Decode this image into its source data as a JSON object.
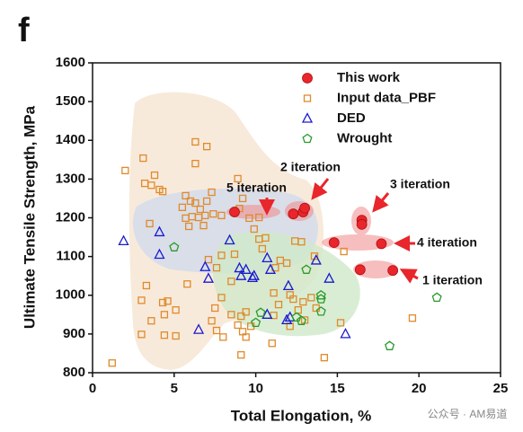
{
  "chart_data": {
    "type": "scatter",
    "title": "f",
    "x_label": "Total Elongation, %",
    "y_label": "Ultimate Tensile Strength, MPa",
    "xlim": [
      0,
      25
    ],
    "xticks": [
      0,
      5,
      10,
      15,
      20,
      25
    ],
    "ylim": [
      800,
      1600
    ],
    "yticks": [
      800,
      900,
      1000,
      1100,
      1200,
      1300,
      1400,
      1500,
      1600
    ],
    "grid": false,
    "legend": "upper right",
    "annotations": [
      "1 iteration",
      "2 iteration",
      "3 iteration",
      "4 iteration",
      "5 iteration"
    ],
    "watermark": "公众号 · AM易道",
    "series": [
      {
        "name": "This work",
        "color": "#e8262b",
        "marker": "circle",
        "x": [
          8.7,
          12.3,
          12.9,
          13.0,
          16.5,
          16.5,
          14.8,
          17.7,
          16.4,
          18.4
        ],
        "values": [
          1215,
          1210,
          1215,
          1225,
          1194,
          1183,
          1136,
          1133,
          1066,
          1064
        ]
      },
      {
        "name": "Input data_PBF",
        "color": "#e08a2a",
        "marker": "square",
        "x": [
          1.2,
          2.0,
          3.1,
          3.2,
          3.6,
          3.8,
          4.1,
          4.3,
          3.5,
          3.3,
          3.0,
          3.0,
          3.6,
          4.3,
          4.6,
          4.4,
          5.1,
          4.4,
          5.1,
          5.8,
          6.3,
          6.3,
          7.0,
          5.7,
          5.5,
          6.0,
          6.3,
          6.6,
          7.0,
          7.3,
          5.7,
          6.1,
          6.5,
          6.9,
          7.4,
          7.9,
          5.9,
          6.8,
          8.9,
          9.2,
          9.0,
          9.6,
          10.2,
          9.9,
          10.2,
          10.4,
          10.6,
          7.1,
          7.9,
          7.6,
          8.5,
          8.7,
          7.9,
          7.5,
          7.3,
          7.6,
          8.0,
          8.5,
          8.9,
          9.1,
          9.2,
          9.4,
          9.4,
          9.7,
          9.1,
          11.1,
          11.4,
          11.1,
          11.0,
          11.2,
          11.5,
          11.9,
          12.1,
          12.3,
          12.9,
          13.4,
          12.6,
          13.0,
          13.7,
          12.1,
          13.6,
          12.8,
          14.2,
          15.4,
          15.2,
          19.6,
          12.4
        ],
        "values": [
          825,
          1322,
          1354,
          1289,
          1284,
          1310,
          1273,
          1268,
          1185,
          1025,
          987,
          899,
          934,
          981,
          985,
          950,
          962,
          897,
          895,
          1029,
          1396,
          1340,
          1384,
          1257,
          1227,
          1243,
          1238,
          1222,
          1243,
          1266,
          1199,
          1203,
          1201,
          1206,
          1210,
          1206,
          1178,
          1180,
          1301,
          1250,
          1224,
          1199,
          1201,
          1171,
          1145,
          1120,
          1148,
          1092,
          1103,
          1071,
          1036,
          1106,
          994,
          967,
          934,
          909,
          892,
          950,
          923,
          946,
          906,
          957,
          892,
          920,
          846,
          1006,
          976,
          948,
          876,
          1071,
          1090,
          1083,
          1001,
          990,
          983,
          994,
          962,
          936,
          967,
          920,
          1101,
          1138,
          839,
          1113,
          929,
          941,
          1140
        ]
      },
      {
        "name": "DED",
        "color": "#1a1ad0",
        "marker": "triangle",
        "x": [
          1.9,
          4.1,
          4.1,
          6.9,
          7.1,
          6.5,
          8.4,
          9.0,
          9.1,
          9.8,
          9.9,
          10.7,
          10.9,
          12.0,
          11.9,
          12.1,
          13.7,
          14.5,
          15.5,
          10.7,
          9.4
        ],
        "values": [
          1140,
          1163,
          1105,
          1073,
          1043,
          911,
          1142,
          1070,
          1050,
          1045,
          1050,
          1096,
          1066,
          1024,
          936,
          943,
          1090,
          1043,
          900,
          950,
          1066
        ]
      },
      {
        "name": "Wrought",
        "color": "#2a9a2a",
        "marker": "pentagon",
        "x": [
          5.0,
          10.0,
          13.1,
          14.0,
          14.0,
          12.8,
          12.5,
          18.2,
          21.1,
          10.3,
          14.0
        ],
        "values": [
          1124,
          929,
          1066,
          990,
          958,
          934,
          943,
          869,
          994,
          955,
          1000
        ]
      }
    ]
  }
}
